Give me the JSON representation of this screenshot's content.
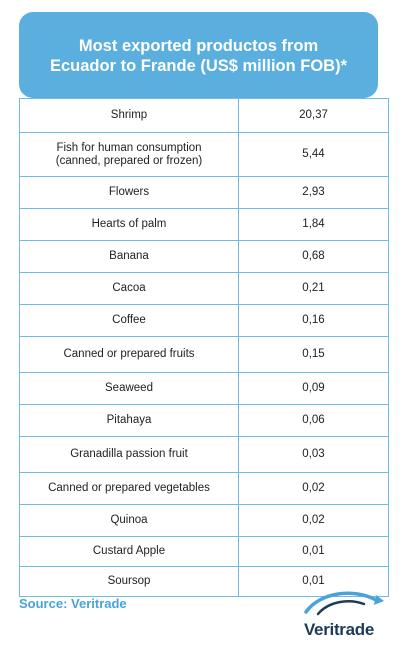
{
  "chart_data": {
    "type": "table",
    "title": "Most exported productos from\nEcuador to Frande (US$ million FOB)*",
    "rows": [
      {
        "product": "Shrimp",
        "value": "20,37"
      },
      {
        "product": "Fish for human consumption\n(canned, prepared or frozen)",
        "value": "5,44"
      },
      {
        "product": "Flowers",
        "value": "2,93"
      },
      {
        "product": "Hearts of palm",
        "value": "1,84"
      },
      {
        "product": "Banana",
        "value": "0,68"
      },
      {
        "product": "Cacoa",
        "value": "0,21"
      },
      {
        "product": "Coffee",
        "value": "0,16"
      },
      {
        "product": "Canned or prepared fruits",
        "value": "0,15"
      },
      {
        "product": "Seaweed",
        "value": "0,09"
      },
      {
        "product": "Pitahaya",
        "value": "0,06"
      },
      {
        "product": "Granadilla passion fruit",
        "value": "0,03"
      },
      {
        "product": "Canned or prepared vegetables",
        "value": "0,02"
      },
      {
        "product": "Quinoa",
        "value": "0,02"
      },
      {
        "product": "Custard Apple",
        "value": "0,01"
      },
      {
        "product": "Soursop",
        "value": "0,01"
      }
    ]
  },
  "source": "Source: Veritrade",
  "logo": {
    "text": "Veritrade",
    "name": "veritrade-logo"
  },
  "colors": {
    "header": "#5aafdf",
    "border": "#6fbbe4",
    "source": "#4aa3d8",
    "logo_text": "#1f3b57",
    "logo_accent": "#4aa3d8"
  }
}
